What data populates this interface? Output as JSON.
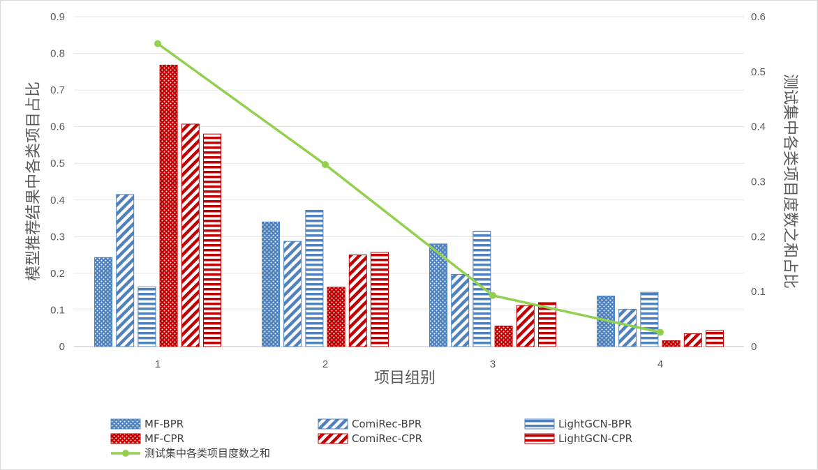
{
  "chart_data": {
    "type": "bar",
    "xlabel": "项目组别",
    "ylabel": "模型推荐结果中各类项目占比",
    "y2label": "测试集中各类项目度数之和占比",
    "categories": [
      "1",
      "2",
      "3",
      "4"
    ],
    "ylim": [
      0,
      0.9
    ],
    "y_ticks": [
      "0",
      "0.1",
      "0.2",
      "0.3",
      "0.4",
      "0.5",
      "0.6",
      "0.7",
      "0.8",
      "0.9"
    ],
    "y2lim": [
      0,
      0.6
    ],
    "y2_ticks": [
      "0",
      "0.1",
      "0.2",
      "0.3",
      "0.4",
      "0.5",
      "0.6"
    ],
    "grid": true,
    "legend_position": "bottom",
    "series": [
      {
        "name": "MF-BPR",
        "color": "#4f81bd",
        "pattern": "dots",
        "values": [
          0.243,
          0.34,
          0.28,
          0.138
        ]
      },
      {
        "name": "ComiRec-BPR",
        "color": "#4f81bd",
        "pattern": "diagonal",
        "values": [
          0.415,
          0.287,
          0.197,
          0.102
        ]
      },
      {
        "name": "LightGCN-BPR",
        "color": "#4f81bd",
        "pattern": "horizontal",
        "values": [
          0.163,
          0.372,
          0.315,
          0.148
        ]
      },
      {
        "name": "MF-CPR",
        "color": "#c00000",
        "pattern": "dots",
        "values": [
          0.768,
          0.162,
          0.056,
          0.016
        ]
      },
      {
        "name": "ComiRec-CPR",
        "color": "#c00000",
        "pattern": "diagonal",
        "values": [
          0.607,
          0.25,
          0.112,
          0.035
        ]
      },
      {
        "name": "LightGCN-CPR",
        "color": "#c00000",
        "pattern": "horizontal",
        "values": [
          0.58,
          0.257,
          0.12,
          0.044
        ]
      }
    ],
    "line_series": {
      "name": "测试集中各类项目度数之和",
      "color": "#92d050",
      "axis": "right",
      "values": [
        0.551,
        0.331,
        0.093,
        0.026
      ]
    }
  }
}
